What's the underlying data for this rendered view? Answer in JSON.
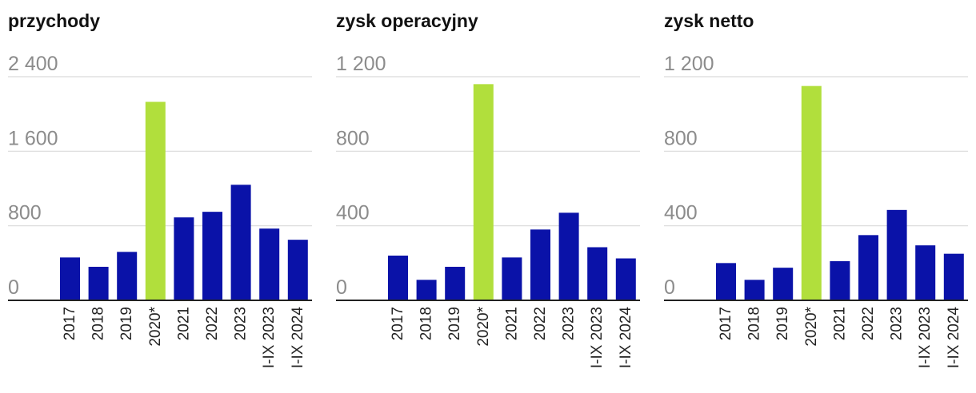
{
  "colors": {
    "bar": "#0a12a8",
    "highlight": "#b1df3c",
    "grid": "#d9d9d9",
    "axis": "#222222",
    "tick": "#8c8c8c"
  },
  "chart_data": [
    {
      "type": "bar",
      "title": "przychody",
      "categories": [
        "2017",
        "2018",
        "2019",
        "2020*",
        "2021",
        "2022",
        "2023",
        "I-IX 2023",
        "I-IX 2024"
      ],
      "values": [
        460,
        360,
        520,
        2130,
        890,
        950,
        1240,
        770,
        650
      ],
      "highlight_category": "2020*",
      "ylim": [
        0,
        2400
      ],
      "yticks": [
        0,
        800,
        1600,
        2400
      ],
      "ytick_labels": [
        "0",
        "800",
        "1 600",
        "2 400"
      ],
      "xlabel": "",
      "ylabel": "",
      "grid": true
    },
    {
      "type": "bar",
      "title": "zysk operacyjny",
      "categories": [
        "2017",
        "2018",
        "2019",
        "2020*",
        "2021",
        "2022",
        "2023",
        "I-IX 2023",
        "I-IX 2024"
      ],
      "values": [
        240,
        110,
        180,
        1160,
        230,
        380,
        470,
        285,
        225
      ],
      "highlight_category": "2020*",
      "ylim": [
        0,
        1200
      ],
      "yticks": [
        0,
        400,
        800,
        1200
      ],
      "ytick_labels": [
        "0",
        "400",
        "800",
        "1 200"
      ],
      "xlabel": "",
      "ylabel": "",
      "grid": true
    },
    {
      "type": "bar",
      "title": "zysk netto",
      "categories": [
        "2017",
        "2018",
        "2019",
        "2020*",
        "2021",
        "2022",
        "2023",
        "I-IX 2023",
        "I-IX 2024"
      ],
      "values": [
        200,
        110,
        175,
        1150,
        210,
        350,
        485,
        295,
        250
      ],
      "highlight_category": "2020*",
      "ylim": [
        0,
        1200
      ],
      "yticks": [
        0,
        400,
        800,
        1200
      ],
      "ytick_labels": [
        "0",
        "400",
        "800",
        "1 200"
      ],
      "xlabel": "",
      "ylabel": "",
      "grid": true
    }
  ]
}
